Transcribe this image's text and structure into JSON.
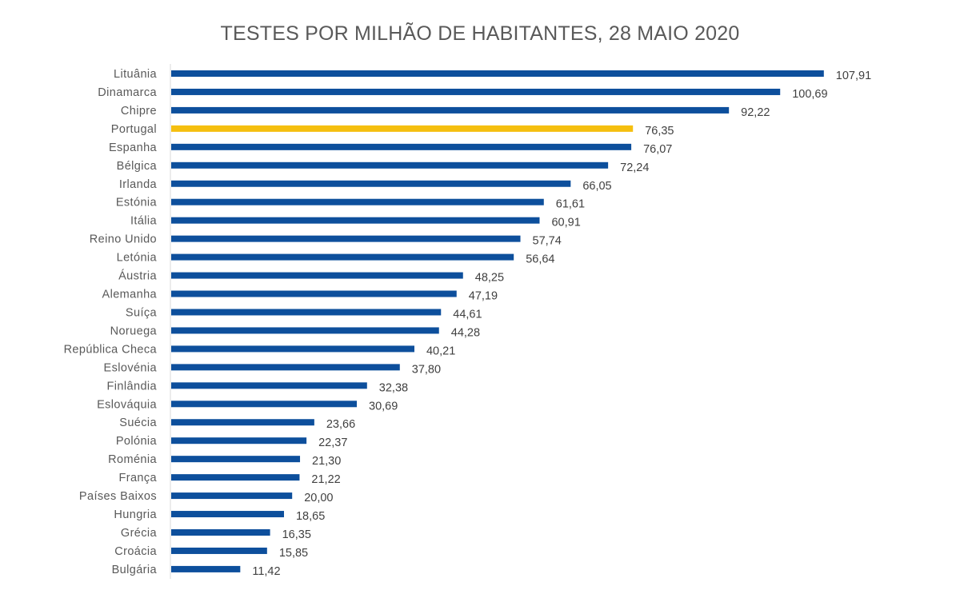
{
  "chart_data": {
    "type": "bar",
    "orientation": "horizontal",
    "title": "TESTES POR MILHÃO DE HABITANTES, 28 MAIO 2020",
    "xlabel": "",
    "ylabel": "",
    "xlim": [
      0,
      110
    ],
    "grid": false,
    "legend": "none",
    "colors": {
      "default": "#0d4f9c",
      "highlight": "#f5bf0f"
    },
    "highlight_category": "Portugal",
    "categories": [
      "Lituânia",
      "Dinamarca",
      "Chipre",
      "Portugal",
      "Espanha",
      "Bélgica",
      "Irlanda",
      "Estónia",
      "Itália",
      "Reino Unido",
      "Letónia",
      "Áustria",
      "Alemanha",
      "Suíça",
      "Noruega",
      "República Checa",
      "Eslovénia",
      "Finlândia",
      "Eslováquia",
      "Suécia",
      "Polónia",
      "Roménia",
      "França",
      "Países Baixos",
      "Hungria",
      "Grécia",
      "Croácia",
      "Bulgária"
    ],
    "values": [
      107.91,
      100.69,
      92.22,
      76.35,
      76.07,
      72.24,
      66.05,
      61.61,
      60.91,
      57.74,
      56.64,
      48.25,
      47.19,
      44.61,
      44.28,
      40.21,
      37.8,
      32.38,
      30.69,
      23.66,
      22.37,
      21.3,
      21.22,
      20.0,
      18.65,
      16.35,
      15.85,
      11.42
    ],
    "value_labels": [
      "107,91",
      "100,69",
      "92,22",
      "76,35",
      "76,07",
      "72,24",
      "66,05",
      "61,61",
      "60,91",
      "57,74",
      "56,64",
      "48,25",
      "47,19",
      "44,61",
      "44,28",
      "40,21",
      "37,80",
      "32,38",
      "30,69",
      "23,66",
      "22,37",
      "21,30",
      "21,22",
      "20,00",
      "18,65",
      "16,35",
      "15,85",
      "11,42"
    ]
  }
}
